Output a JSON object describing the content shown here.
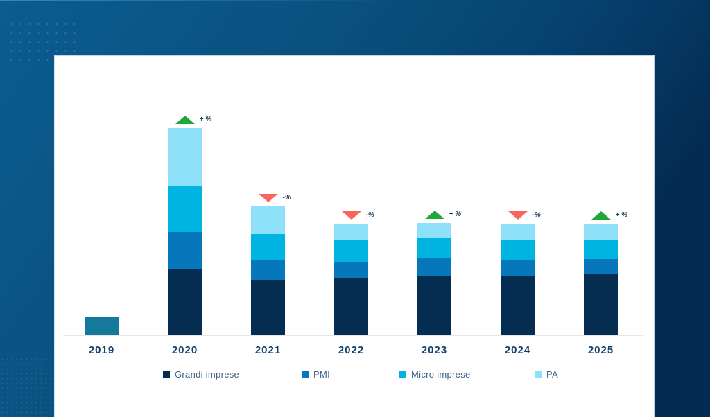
{
  "chart_data": {
    "type": "bar",
    "stacked": true,
    "title": "",
    "xlabel": "",
    "ylabel": "",
    "value_axis": "no numeric axis shown; values are relative units estimated from bar pixel heights",
    "grid": false,
    "legend_position": "bottom",
    "categories": [
      "2019",
      "2020",
      "2021",
      "2022",
      "2023",
      "2024",
      "2025"
    ],
    "series": [
      {
        "name": "Grandi imprese",
        "color": "#052c51",
        "values": [
          0,
          95,
          80,
          83,
          85,
          86,
          88
        ]
      },
      {
        "name": "PMI",
        "color": "#0777bc",
        "values": [
          0,
          54,
          29,
          23,
          26,
          23,
          22
        ]
      },
      {
        "name": "Micro imprese",
        "color": "#00b4e1",
        "values": [
          0,
          66,
          37,
          31,
          29,
          29,
          27
        ]
      },
      {
        "name": "PA",
        "color": "#8fe0f9",
        "values": [
          0,
          84,
          40,
          24,
          22,
          23,
          24
        ]
      }
    ],
    "special_bar": {
      "category": "2019",
      "color": "#15799b",
      "value": 27,
      "note": "single uncategorized teal bar, not in legend"
    },
    "annotations": [
      {
        "category": "2020",
        "direction": "up",
        "label": "+ %"
      },
      {
        "category": "2021",
        "direction": "down",
        "label": "-%"
      },
      {
        "category": "2022",
        "direction": "down",
        "label": "-%"
      },
      {
        "category": "2023",
        "direction": "up",
        "label": "+ %"
      },
      {
        "category": "2024",
        "direction": "down",
        "label": "-%"
      },
      {
        "category": "2025",
        "direction": "up",
        "label": "+ %"
      }
    ],
    "colors": {
      "up_arrow": "#21a63c",
      "down_arrow": "#f9655a",
      "axis_line": "#e8e8eb",
      "year_label_text": "#16406c",
      "legend_text": "#3c6386",
      "annotation_text": "#1d3f66",
      "card_background": "#ffffff",
      "page_background_start": "#0c5c90",
      "page_background_end": "#042c52"
    }
  }
}
